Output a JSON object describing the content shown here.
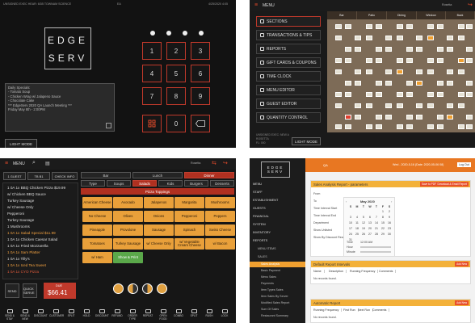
{
  "q1": {
    "header_left": "UNSIGNED EXEC HEAR: 6GB TOWNAM SCIENCE ",
    "header_mid": "EA",
    "header_right": "4/25/2020 4:05",
    "logo_top": "EDGE",
    "logo_bottom": "SERV",
    "keys": [
      "1",
      "2",
      "3",
      "4",
      "5",
      "6",
      "7",
      "8",
      "9",
      "0"
    ],
    "memo_lines": [
      "Daily Specials:",
      " - Tomato Soup",
      " - Chicken Wrap w/ Jalapeno Sauce",
      " - Chocolate Cake",
      "",
      "*** EdgeServ 2020 QA Launch Meeting ***",
      "    Friday May 8th - 2:00PM"
    ],
    "light_mode": "LIGHT MODE"
  },
  "q2": {
    "menu_label": "MENU",
    "header_right": "Rosetta",
    "menu_items": [
      "SECTIONS",
      "TRANSACTIONS & TIPS",
      "REPORTS",
      "GIFT CARDS & COUPONS",
      "TIME CLOCK",
      "MENU EDITOR",
      "GUEST EDITOR",
      "QUANTITY CONTROL"
    ],
    "zones": [
      "Bar",
      "Patio",
      "Dining",
      "Window",
      "Back"
    ],
    "footer_lines": [
      "UNSIGNED EXEC: NEW A",
      "ROSETTA",
      "FL: 000"
    ],
    "light_mode": "LIGHT MODE"
  },
  "q3": {
    "menu_label": "MENU",
    "user": "Rosetta",
    "tabs_top": [
      "Bar",
      "Lunch",
      "Dinner"
    ],
    "tabs_cat": [
      "Type",
      "Soups",
      "Salads",
      "Kids",
      "Burgers",
      "Desserts"
    ],
    "guest_btn": "1 GUEST",
    "table_btn": "TB B1",
    "check_btn": "CHECK INFO",
    "ticket": [
      {
        "text": "1   0A  1x BBQ Chicken Pizza    $19.99",
        "cls": ""
      },
      {
        "text": "           w/ Chicken BBQ Sauce",
        "cls": ""
      },
      {
        "text": "           Turkey Sausage",
        "cls": ""
      },
      {
        "text": "           w/ Cheese Only",
        "cls": ""
      },
      {
        "text": "           Pepperoni",
        "cls": ""
      },
      {
        "text": "           Turkey Sausage",
        "cls": ""
      },
      {
        "text": "           1 Mushrooms",
        "cls": ""
      },
      {
        "text": "1   0A  1x Salad Special    $11.99",
        "cls": "hl"
      },
      {
        "text": "1   0A  1x Chicken Caesar Salad",
        "cls": ""
      },
      {
        "text": "1   0A  1x Fried Mozzarella",
        "cls": ""
      },
      {
        "text": "1   0A  1x Sam Platter",
        "cls": "hl"
      },
      {
        "text": "1   0A  1x Tilly's",
        "cls": ""
      },
      {
        "text": "1   0A  1x Iced Tea Sweet",
        "cls": "hl"
      },
      {
        "text": "1   0A  1x CYO Pizza",
        "cls": "red"
      }
    ],
    "total_label": "DUE",
    "total_value": "$66.41",
    "panel_title": "Pizza Toppings",
    "toppings": [
      "American Cheese",
      "Avocado",
      "Jalapenos",
      "Margarita",
      "Mushrooms",
      "No Cheese",
      "Olives",
      "Onions",
      "Pepperoni",
      "Peppers",
      "Pineapple",
      "Provolone",
      "Sausage",
      "Spinach",
      "Swiss Cheese",
      "Tomatoes",
      "Turkey Sausage",
      "w/ Cheese Only",
      "w/ Vegetable Cream Cheese",
      "w/ Bacon",
      "w/ Ham",
      "Show & Print"
    ],
    "bottom_buttons": [
      "SEND & STAY",
      "SEND & NEW",
      "DISCOUNT",
      "CUSTOMER",
      "SPLIT",
      "HOLD",
      "DISCOUNT",
      "REFUND",
      "ORDER TYPE",
      "REPEAT",
      "OPEN FOOD",
      "COMBO",
      "SPLIT",
      "RUSH",
      "LOCK"
    ],
    "left_buttons": [
      "SEND",
      "QUICK SERVE"
    ]
  },
  "q4": {
    "logo": "EDGE SERV",
    "bar_left": "QA",
    "bar_mid": "Wed - 2020-5-16 (Date: 2020-05-06 08)",
    "bar_right": "Log Out",
    "side_items": [
      "MENU",
      "STAFF",
      "ESTABLISHMENT",
      "GUESTS",
      "FINANCIAL",
      "SYSTEM",
      "INVENTORY",
      "REPORTS"
    ],
    "side_subs": [
      "MENU ITEMS",
      "SALES"
    ],
    "report_items": [
      "Sales Analysis",
      "Basic Payment",
      "Menu Sales",
      "Payments",
      "Item Types Sales",
      "Item Sales By Server",
      "Modified Sales Report",
      "Sum Of Sales",
      "Restaurant Summary"
    ],
    "card1_title": "Sales Analysis Report - parameters",
    "card1_btn1": "Save to PDF",
    "card1_btn2": "Download & Email Report",
    "form_labels": [
      "From",
      "To",
      "Time Interval Start",
      "Time Interval End",
      "Department",
      "Show Unlisted",
      "Show By Discount Reason"
    ],
    "calendar_title": "May 2020",
    "calendar_days": [
      "S",
      "M",
      "T",
      "W",
      "T",
      "F",
      "S"
    ],
    "calendar_dates": [
      "",
      "",
      "",
      "",
      "",
      "1",
      "2",
      "3",
      "4",
      "5",
      "6",
      "7",
      "8",
      "9",
      "10",
      "11",
      "12",
      "13",
      "14",
      "15",
      "16",
      "17",
      "18",
      "19",
      "20",
      "21",
      "22",
      "23",
      "24",
      "25",
      "26",
      "27",
      "28",
      "29",
      "30",
      "31"
    ],
    "time_label": "Time",
    "time_value": "12:00 AM",
    "hour_label": "Hour",
    "minute_label": "Minute",
    "card2_title": "Default Report Intervals",
    "card2_btn": "Add New",
    "card2_cols": [
      "Name",
      "Description",
      "Running Frequency",
      "Comments"
    ],
    "card2_empty": "No records found.",
    "card3_title": "Automatic Report",
    "card3_btn": "Add New",
    "card3_cols": [
      "Running Frequency",
      "First Run",
      "Next Run",
      "Comments"
    ],
    "card3_empty": "No records found."
  }
}
